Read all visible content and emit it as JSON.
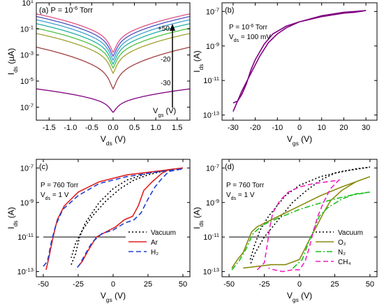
{
  "chart_data": [
    {
      "id": "a",
      "type": "line",
      "panel_label": "(a)",
      "condition": "P = 10",
      "condition_sup": "-6",
      "condition_unit": " Torr",
      "xlabel_main": "V",
      "xlabel_sub": "ds",
      "xlabel_unit": " (V)",
      "ylabel_main": "I",
      "ylabel_sub": "ds",
      "ylabel_unit": " (µA)",
      "xlim": [
        -1.8,
        1.8
      ],
      "ylim_log10": [
        -8,
        1
      ],
      "y_log": true,
      "xticks": [
        "-1.5",
        "-1.0",
        "-0.5",
        "0.0",
        "0.5",
        "1.0",
        "1.5"
      ],
      "xtick_values": [
        -1.5,
        -1.0,
        -0.5,
        0.0,
        0.5,
        1.0,
        1.5
      ],
      "yticks_base": "10",
      "yticks_exp": [
        "1",
        "-1",
        "-3",
        "-5",
        "-7"
      ],
      "ytick_values_log10": [
        1,
        -1,
        -3,
        -5,
        -7
      ],
      "gate_labels": [
        "+50",
        "-20",
        "-30"
      ],
      "arrow_label_main": "V",
      "arrow_label_sub": "gs",
      "arrow_label_unit": " (V)",
      "series": [
        {
          "color": "#e05080",
          "y_at_edge_log10": 0.15,
          "y_at_center_log10": -2.8
        },
        {
          "color": "#5050c0",
          "y_at_edge_log10": -0.05,
          "y_at_center_log10": -3.1
        },
        {
          "color": "#40a0d0",
          "y_at_edge_log10": -0.3,
          "y_at_center_log10": -3.4
        },
        {
          "color": "#20b0a0",
          "y_at_edge_log10": -0.6,
          "y_at_center_log10": -3.7
        },
        {
          "color": "#50c040",
          "y_at_edge_log10": -0.95,
          "y_at_center_log10": -4.0
        },
        {
          "color": "#a0a030",
          "y_at_edge_log10": -1.35,
          "y_at_center_log10": -4.4
        },
        {
          "color": "#a04040",
          "y_at_edge_log10": -2.4,
          "y_at_center_log10": -5.6
        },
        {
          "color": "#800080",
          "y_at_edge_log10": -5.6,
          "y_at_center_log10": -7.4
        }
      ]
    },
    {
      "id": "b",
      "type": "line",
      "panel_label": "(b)",
      "condition": "P = 10",
      "condition_sup": "-6",
      "condition_unit": " Torr",
      "condition2_main": "V",
      "condition2_sub": "ds",
      "condition2_value": " = 100 mV",
      "xlabel_main": "V",
      "xlabel_sub": "gs",
      "xlabel_unit": " (V)",
      "ylabel_main": "I",
      "ylabel_sub": "ds",
      "ylabel_unit": " (A)",
      "xlim": [
        -35,
        35
      ],
      "ylim_log10": [
        -13.3,
        -6.5
      ],
      "y_log": true,
      "xticks": [
        "-30",
        "-20",
        "-10",
        "0",
        "10",
        "20",
        "30"
      ],
      "xtick_values": [
        -30,
        -20,
        -10,
        0,
        10,
        20,
        30
      ],
      "yticks_base": "10",
      "yticks_exp": [
        "-7",
        "-9",
        "-11",
        "-13"
      ],
      "ytick_values_log10": [
        -7,
        -9,
        -11,
        -13
      ],
      "series": [
        {
          "color": "#800080",
          "points": [
            [
              -30,
              -12.3
            ],
            [
              -28,
              -12.2
            ],
            [
              -26,
              -11.8
            ],
            [
              -24,
              -11.2
            ],
            [
              -22,
              -10.4
            ],
            [
              -20,
              -9.8
            ],
            [
              -16,
              -8.9
            ],
            [
              -12,
              -8.3
            ],
            [
              -6,
              -7.85
            ],
            [
              0,
              -7.6
            ],
            [
              10,
              -7.3
            ],
            [
              20,
              -7.1
            ],
            [
              25,
              -7.05
            ],
            [
              30,
              -6.95
            ],
            [
              25,
              -7.0
            ],
            [
              20,
              -7.05
            ],
            [
              10,
              -7.25
            ],
            [
              0,
              -7.6
            ],
            [
              -6,
              -7.95
            ],
            [
              -10,
              -8.3
            ],
            [
              -14,
              -8.8
            ],
            [
              -18,
              -9.6
            ],
            [
              -22,
              -10.6
            ],
            [
              -26,
              -11.6
            ],
            [
              -28,
              -12.2
            ],
            [
              -30,
              -12.8
            ]
          ]
        }
      ]
    },
    {
      "id": "c",
      "type": "line",
      "panel_label": "(c)",
      "condition": "P = 760 Torr",
      "condition2_main": "V",
      "condition2_sub": "ds",
      "condition2_value": " = 1 V",
      "xlabel_main": "V",
      "xlabel_sub": "gs",
      "xlabel_unit": " (V)",
      "ylabel_main": "I",
      "ylabel_sub": "ds",
      "ylabel_unit": " (A)",
      "xlim": [
        -55,
        55
      ],
      "ylim_log10": [
        -13.3,
        -6.5
      ],
      "y_log": true,
      "xticks": [
        "-50",
        "-25",
        "0",
        "25",
        "50"
      ],
      "xtick_values": [
        -50,
        -25,
        0,
        25,
        50
      ],
      "yticks_base": "10",
      "yticks_exp": [
        "-7",
        "-9",
        "-11",
        "-13"
      ],
      "ytick_values_log10": [
        -7,
        -9,
        -11,
        -13
      ],
      "threshold_log10": -11.0,
      "threshold_x": [
        -50,
        9
      ],
      "legend_position": "bottom-right",
      "series": [
        {
          "name": "Vacuum",
          "color": "#000000",
          "dash": "2,3",
          "points": [
            [
              -30,
              -12.6
            ],
            [
              -27,
              -12.0
            ],
            [
              -24,
              -11.0
            ],
            [
              -20,
              -10.2
            ],
            [
              -10,
              -9.0
            ],
            [
              0,
              -8.2
            ],
            [
              10,
              -7.7
            ],
            [
              25,
              -7.3
            ],
            [
              40,
              -7.1
            ],
            [
              50,
              -7.0
            ],
            [
              40,
              -7.1
            ],
            [
              25,
              -7.4
            ],
            [
              15,
              -7.7
            ],
            [
              5,
              -8.2
            ],
            [
              -5,
              -8.9
            ],
            [
              -15,
              -9.8
            ],
            [
              -22,
              -10.6
            ],
            [
              -27,
              -11.4
            ],
            [
              -30,
              -12.2
            ]
          ]
        },
        {
          "name": "Ar",
          "color": "#e02020",
          "dash": "",
          "points": [
            [
              -48,
              -12.9
            ],
            [
              -46,
              -12.2
            ],
            [
              -43,
              -11.0
            ],
            [
              -40,
              -10.0
            ],
            [
              -35,
              -9.2
            ],
            [
              -25,
              -8.4
            ],
            [
              -10,
              -7.8
            ],
            [
              10,
              -7.4
            ],
            [
              30,
              -7.2
            ],
            [
              50,
              -7.0
            ],
            [
              40,
              -7.1
            ],
            [
              35,
              -7.3
            ],
            [
              28,
              -7.8
            ],
            [
              22,
              -8.3
            ],
            [
              18,
              -9.2
            ],
            [
              14,
              -9.8
            ],
            [
              8,
              -10.0
            ],
            [
              2,
              -10.4
            ],
            [
              -5,
              -10.7
            ],
            [
              -12,
              -11.0
            ],
            [
              -18,
              -11.8
            ],
            [
              -22,
              -12.4
            ],
            [
              -25,
              -12.7
            ]
          ]
        },
        {
          "name": "H₂",
          "color": "#2040d0",
          "dash": "7,4",
          "points": [
            [
              -50,
              -12.7
            ],
            [
              -47,
              -12.4
            ],
            [
              -44,
              -11.2
            ],
            [
              -41,
              -10.3
            ],
            [
              -36,
              -9.4
            ],
            [
              -25,
              -8.6
            ],
            [
              -10,
              -7.9
            ],
            [
              10,
              -7.5
            ],
            [
              30,
              -7.25
            ],
            [
              50,
              -7.05
            ],
            [
              40,
              -7.2
            ],
            [
              35,
              -7.6
            ],
            [
              30,
              -8.1
            ],
            [
              25,
              -8.8
            ],
            [
              20,
              -9.6
            ],
            [
              15,
              -10.0
            ],
            [
              8,
              -10.2
            ],
            [
              0,
              -10.6
            ],
            [
              -8,
              -10.8
            ],
            [
              -15,
              -11.3
            ],
            [
              -20,
              -12.0
            ],
            [
              -24,
              -12.6
            ],
            [
              -27,
              -12.9
            ]
          ]
        }
      ]
    },
    {
      "id": "d",
      "type": "line",
      "panel_label": "(d)",
      "condition": "P = 760 Torr",
      "condition2_main": "V",
      "condition2_sub": "ds",
      "condition2_value": " = 1 V",
      "xlabel_main": "V",
      "xlabel_sub": "gs",
      "xlabel_unit": " (V)",
      "ylabel_main": "I",
      "ylabel_sub": "ds",
      "ylabel_unit": " (A)",
      "xlim": [
        -55,
        55
      ],
      "ylim_log10": [
        -13.3,
        -6.5
      ],
      "y_log": true,
      "xticks": [
        "-50",
        "-25",
        "0",
        "25",
        "50"
      ],
      "xtick_values": [
        -50,
        -25,
        0,
        25,
        50
      ],
      "yticks_base": "10",
      "yticks_exp": [
        "-7",
        "-9",
        "-11",
        "-13"
      ],
      "ytick_values_log10": [
        -7,
        -9,
        -11,
        -13
      ],
      "threshold_log10": -11.0,
      "threshold_x": [
        -50,
        9
      ],
      "legend_position": "bottom-right",
      "series": [
        {
          "name": "Vacuum",
          "color": "#000000",
          "dash": "2,3",
          "points": [
            [
              -35,
              -12.3
            ],
            [
              -32,
              -11.5
            ],
            [
              -28,
              -10.6
            ],
            [
              -22,
              -9.8
            ],
            [
              -10,
              -8.6
            ],
            [
              0,
              -8.0
            ],
            [
              15,
              -7.5
            ],
            [
              30,
              -7.2
            ],
            [
              50,
              -6.95
            ],
            [
              40,
              -7.05
            ],
            [
              25,
              -7.3
            ],
            [
              15,
              -7.7
            ],
            [
              5,
              -8.3
            ],
            [
              -5,
              -9.0
            ],
            [
              -15,
              -10.0
            ],
            [
              -25,
              -11.0
            ],
            [
              -32,
              -12.0
            ],
            [
              -35,
              -12.6
            ]
          ]
        },
        {
          "name": "O₂",
          "color": "#8a8a10",
          "dash": "",
          "points": [
            [
              -48,
              -12.8
            ],
            [
              -44,
              -12.3
            ],
            [
              -40,
              -11.9
            ],
            [
              -37,
              -11.3
            ],
            [
              -34,
              -10.7
            ],
            [
              -30,
              -10.4
            ],
            [
              -20,
              -10.0
            ],
            [
              -10,
              -9.6
            ],
            [
              0,
              -9.2
            ],
            [
              15,
              -8.6
            ],
            [
              30,
              -8.1
            ],
            [
              50,
              -7.5
            ],
            [
              40,
              -7.8
            ],
            [
              30,
              -8.3
            ],
            [
              22,
              -8.9
            ],
            [
              17,
              -9.6
            ],
            [
              12,
              -10.4
            ],
            [
              8,
              -11.0
            ],
            [
              0,
              -12.3
            ],
            [
              -10,
              -12.6
            ],
            [
              -20,
              -12.6
            ],
            [
              -30,
              -12.7
            ],
            [
              -40,
              -12.8
            ]
          ]
        },
        {
          "name": "N₂",
          "color": "#20c020",
          "dash": "8,3,2,3",
          "points": [
            [
              -48,
              -12.9
            ],
            [
              -43,
              -12.4
            ],
            [
              -38,
              -11.7
            ],
            [
              -33,
              -10.8
            ],
            [
              -26,
              -10.3
            ],
            [
              -15,
              -9.9
            ],
            [
              0,
              -9.4
            ],
            [
              20,
              -8.9
            ],
            [
              35,
              -8.6
            ],
            [
              50,
              -8.4
            ],
            [
              40,
              -8.5
            ],
            [
              30,
              -8.8
            ],
            [
              20,
              -9.3
            ],
            [
              14,
              -9.8
            ],
            [
              10,
              -10.6
            ],
            [
              6,
              -11.4
            ],
            [
              2,
              -12.3
            ],
            [
              -6,
              -12.9
            ]
          ]
        },
        {
          "name": "CH₄",
          "color": "#f020c0",
          "dash": "7,4",
          "points": [
            [
              -30,
              -12.9
            ],
            [
              -25,
              -12.5
            ],
            [
              -23,
              -11.5
            ],
            [
              -21,
              -10.4
            ],
            [
              -19,
              -9.6
            ],
            [
              -14,
              -8.9
            ],
            [
              -8,
              -8.4
            ],
            [
              0,
              -8.1
            ],
            [
              10,
              -7.9
            ],
            [
              20,
              -7.8
            ],
            [
              28,
              -7.7
            ],
            [
              22,
              -8.2
            ],
            [
              17,
              -9.0
            ],
            [
              13,
              -9.8
            ],
            [
              10,
              -10.6
            ],
            [
              7,
              -11.6
            ],
            [
              4,
              -12.4
            ],
            [
              0,
              -12.9
            ],
            [
              -5,
              -12.9
            ],
            [
              -12,
              -13.0
            ],
            [
              -18,
              -12.9
            ],
            [
              -22,
              -12.8
            ]
          ]
        }
      ]
    }
  ]
}
